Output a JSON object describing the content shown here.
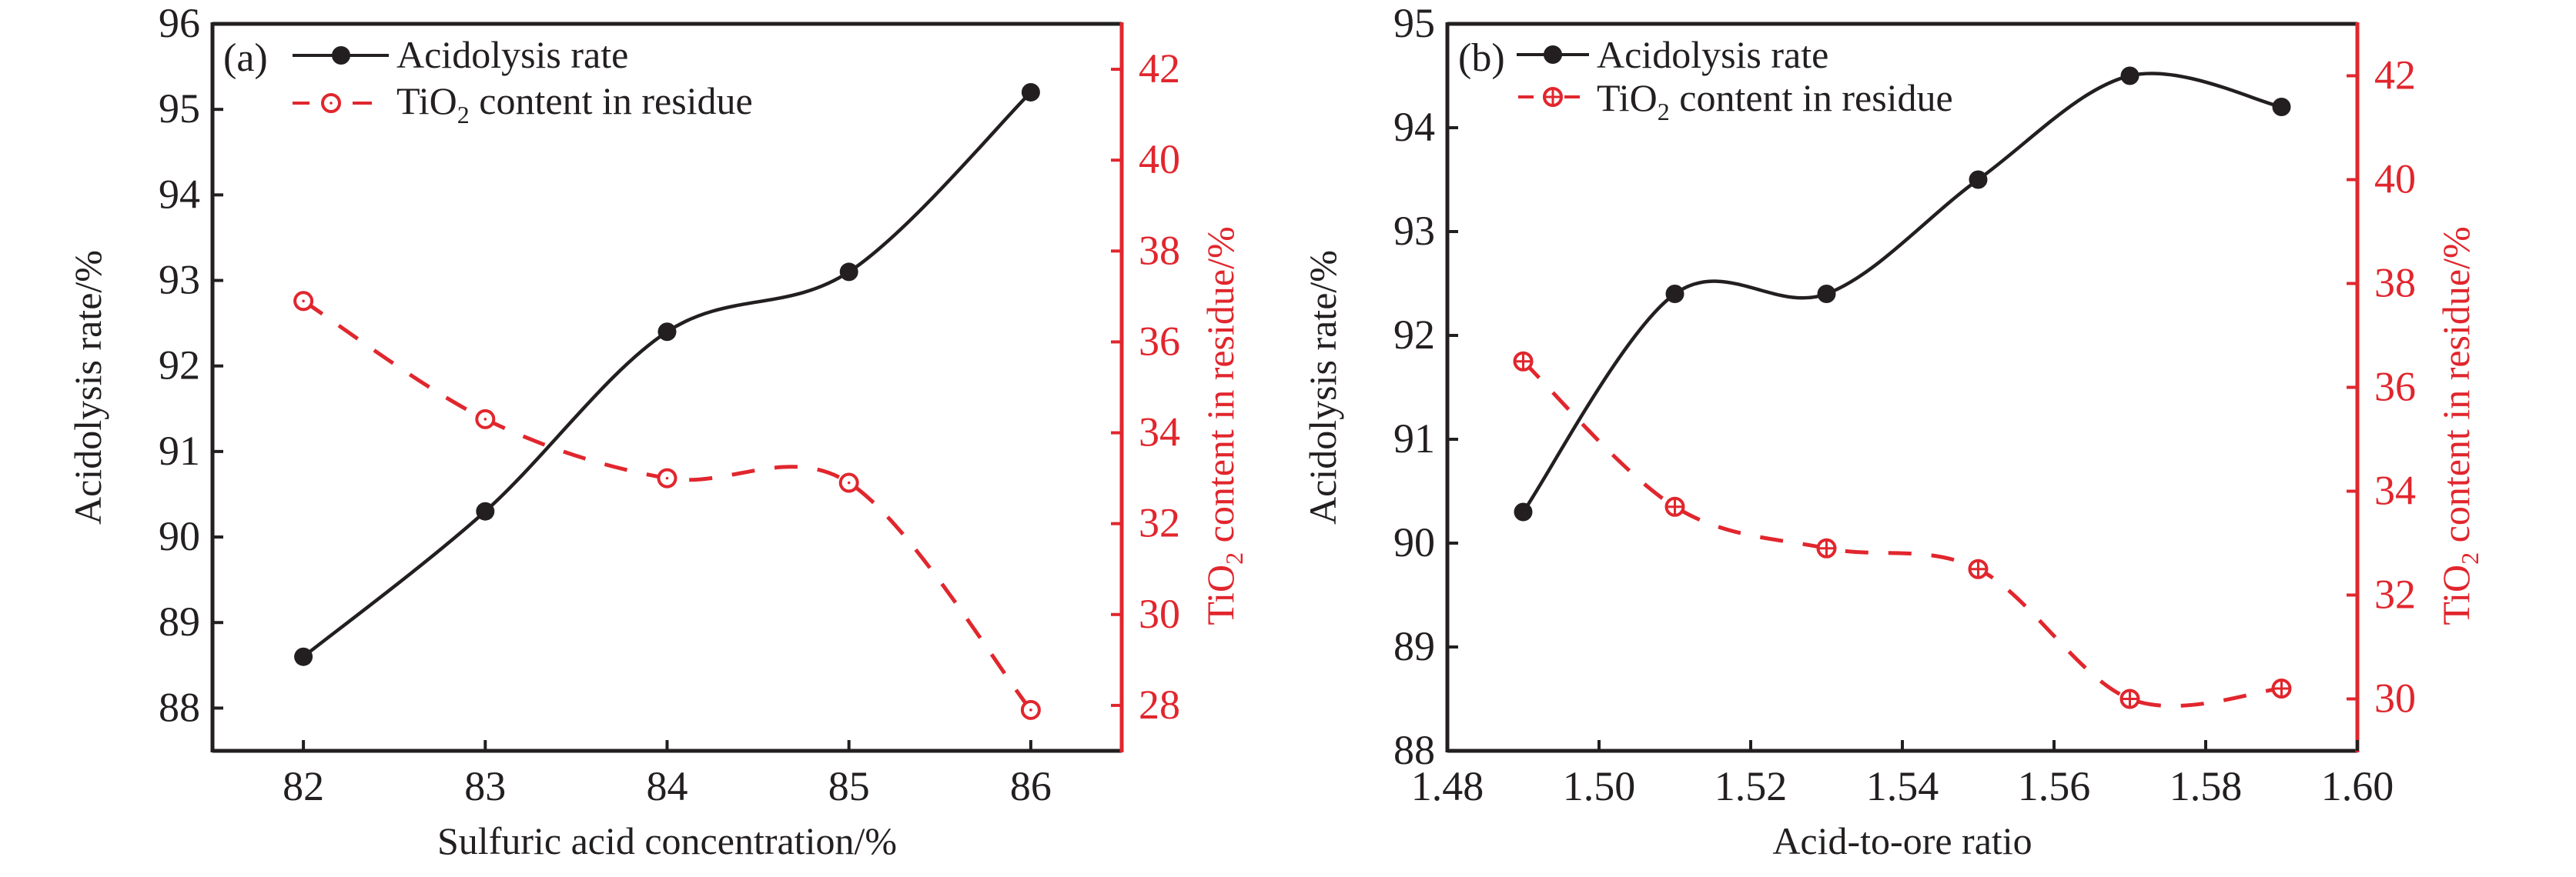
{
  "colors": {
    "acidolysis": "#231f20",
    "tio2": "#e1262d",
    "axis": "#231f20"
  },
  "chart_data": [
    {
      "type": "line",
      "panel_label": "(a)",
      "xlabel": "Sulfuric acid concentration/%",
      "ylabel_left": "Acidolysis rate/%",
      "ylabel_right_prefix": "TiO",
      "ylabel_right_sub": "2",
      "ylabel_right_suffix": " content in residue/%",
      "xlim": [
        81.5,
        86.5
      ],
      "ylim_left": [
        87.5,
        96
      ],
      "ylim_right": [
        27,
        43
      ],
      "x_ticks": [
        "82",
        "83",
        "84",
        "85",
        "86"
      ],
      "x_tick_values": [
        82,
        83,
        84,
        85,
        86
      ],
      "y_left_ticks": [
        "88",
        "89",
        "90",
        "91",
        "92",
        "93",
        "94",
        "95",
        "96"
      ],
      "y_left_tick_values": [
        88,
        89,
        90,
        91,
        92,
        93,
        94,
        95,
        96
      ],
      "y_right_ticks": [
        "28",
        "30",
        "32",
        "34",
        "36",
        "38",
        "40",
        "42"
      ],
      "y_right_tick_values": [
        28,
        30,
        32,
        34,
        36,
        38,
        40,
        42
      ],
      "legend_position": "top-left",
      "grid": false,
      "x": [
        82,
        83,
        84,
        85,
        86
      ],
      "series": [
        {
          "name": "Acidolysis rate",
          "axis": "left",
          "marker": "filled-circle",
          "line": "solid",
          "values": [
            88.6,
            90.3,
            92.4,
            93.1,
            95.2
          ]
        },
        {
          "name_prefix": "TiO",
          "name_sub": "2",
          "name_suffix": " content in residue",
          "axis": "right",
          "marker": "open-circle-dot",
          "line": "dashed",
          "values": [
            36.9,
            34.3,
            33.0,
            32.9,
            27.9
          ]
        }
      ]
    },
    {
      "type": "line",
      "panel_label": "(b)",
      "xlabel": "Acid-to-ore ratio",
      "ylabel_left": "Acidolysis rate/%",
      "ylabel_right_prefix": "TiO",
      "ylabel_right_sub": "2",
      "ylabel_right_suffix": " content in residue/%",
      "xlim": [
        1.48,
        1.6
      ],
      "ylim_left": [
        88,
        95
      ],
      "ylim_right": [
        29,
        43
      ],
      "x_ticks": [
        "1.48",
        "1.50",
        "1.52",
        "1.54",
        "1.56",
        "1.58",
        "1.60"
      ],
      "x_tick_values": [
        1.48,
        1.5,
        1.52,
        1.54,
        1.56,
        1.58,
        1.6
      ],
      "y_left_ticks": [
        "88",
        "89",
        "90",
        "91",
        "92",
        "93",
        "94",
        "95"
      ],
      "y_left_tick_values": [
        88,
        89,
        90,
        91,
        92,
        93,
        94,
        95
      ],
      "y_right_ticks": [
        "30",
        "32",
        "34",
        "36",
        "38",
        "40",
        "42"
      ],
      "y_right_tick_values": [
        30,
        32,
        34,
        36,
        38,
        40,
        42
      ],
      "legend_position": "top-left",
      "grid": false,
      "x": [
        1.49,
        1.51,
        1.53,
        1.55,
        1.57,
        1.59
      ],
      "series": [
        {
          "name": "Acidolysis rate",
          "axis": "left",
          "marker": "filled-circle",
          "line": "solid",
          "values": [
            90.3,
            92.4,
            92.4,
            93.5,
            94.5,
            94.2
          ]
        },
        {
          "name_prefix": "TiO",
          "name_sub": "2",
          "name_suffix": " content in residue",
          "axis": "right",
          "marker": "circle-plus",
          "line": "dashed",
          "values": [
            36.5,
            33.7,
            32.9,
            32.5,
            30.0,
            30.2
          ]
        }
      ]
    }
  ]
}
